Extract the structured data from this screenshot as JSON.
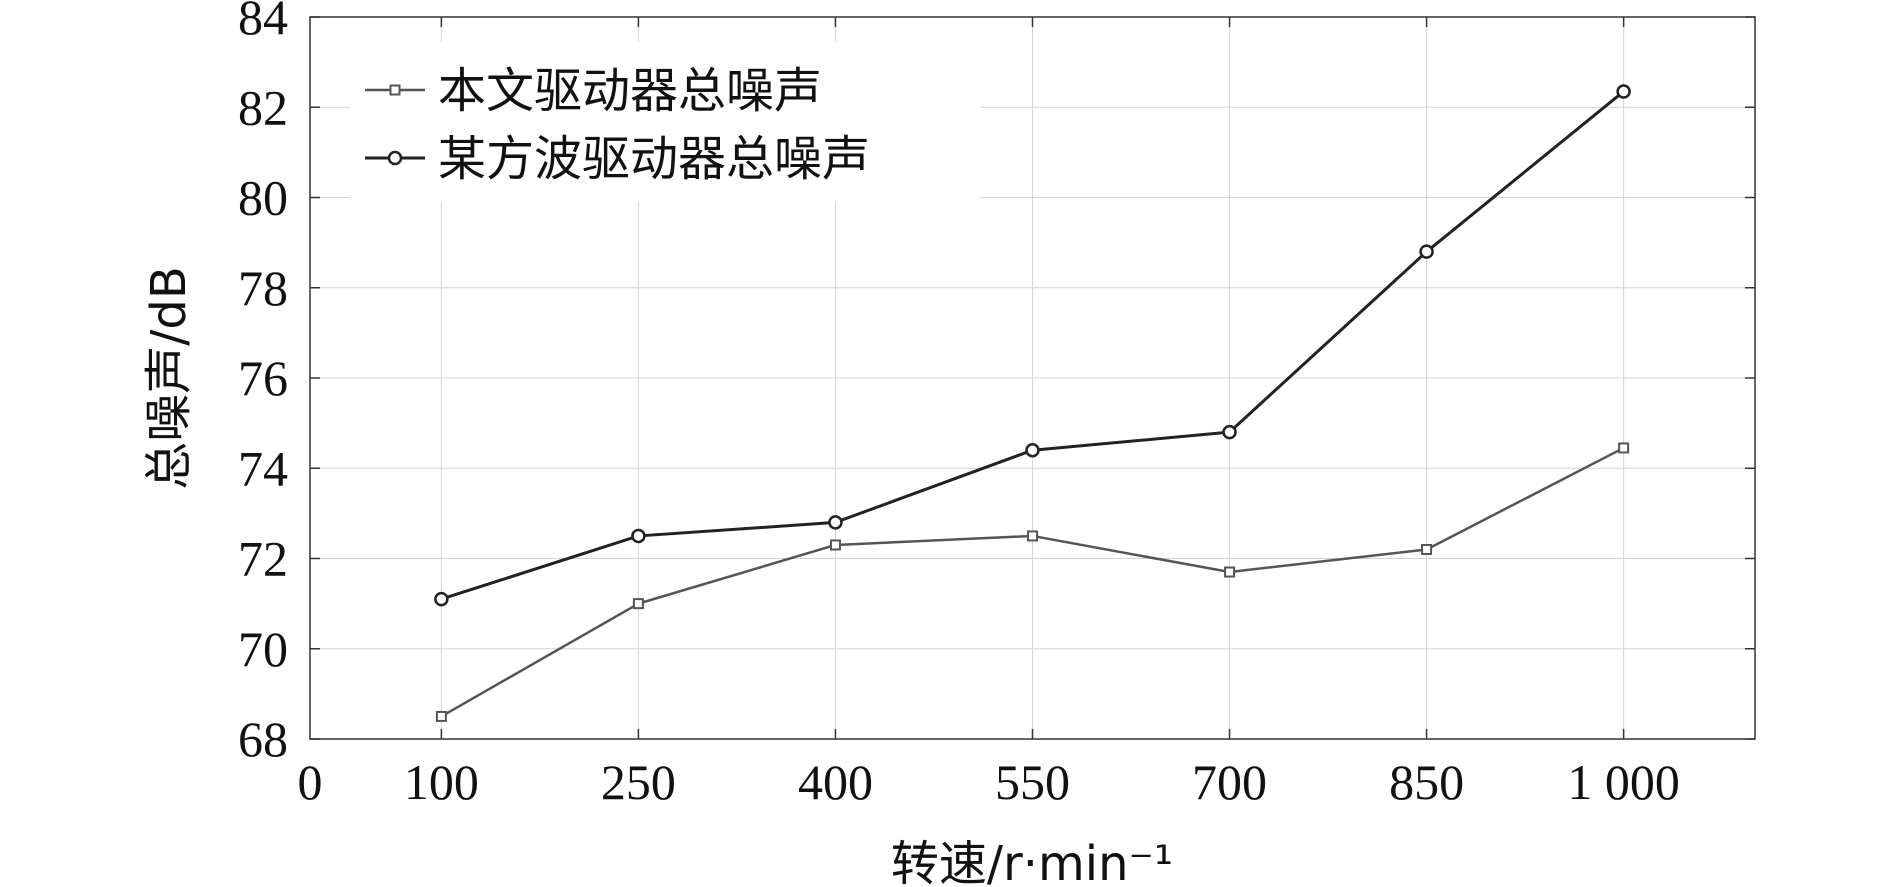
{
  "chart_data": {
    "type": "line",
    "xlabel": "转速/r·min⁻¹",
    "ylabel": "总噪声/dB",
    "xlim": [
      0,
      1100
    ],
    "ylim": [
      68,
      84
    ],
    "x_ticks": [
      0,
      100,
      250,
      400,
      550,
      700,
      850,
      1000
    ],
    "x_tick_labels": [
      "0",
      "100",
      "250",
      "400",
      "550",
      "700",
      "850",
      "1 000"
    ],
    "y_ticks": [
      68,
      70,
      72,
      74,
      76,
      78,
      80,
      82,
      84
    ],
    "y_tick_labels": [
      "68",
      "70",
      "72",
      "74",
      "76",
      "78",
      "80",
      "82",
      "84"
    ],
    "grid": true,
    "legend_position": "top-left",
    "x": [
      100,
      250,
      400,
      550,
      700,
      850,
      1000
    ],
    "series": [
      {
        "name": "本文驱动器总噪声",
        "marker": "square",
        "color": "#555555",
        "values": [
          68.5,
          71.0,
          72.3,
          72.5,
          71.7,
          72.2,
          74.45
        ]
      },
      {
        "name": "某方波驱动器总噪声",
        "marker": "circle",
        "color": "#222222",
        "values": [
          71.1,
          72.5,
          72.8,
          74.4,
          74.8,
          78.8,
          82.35
        ]
      }
    ]
  }
}
